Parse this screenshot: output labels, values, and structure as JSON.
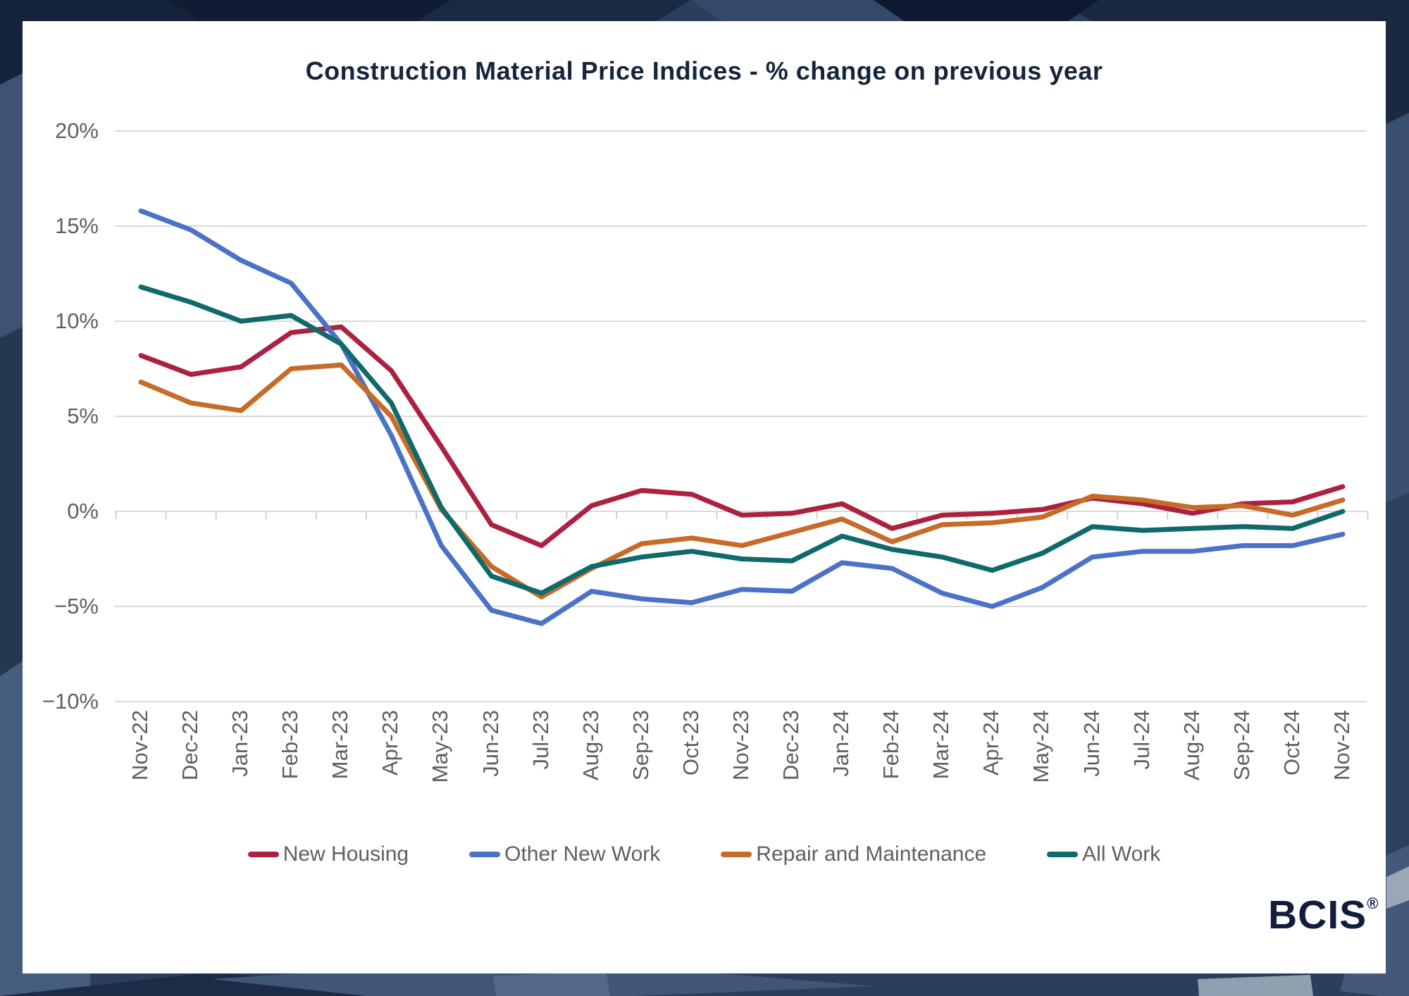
{
  "chart_data": {
    "type": "line",
    "title": "Construction Material Price Indices - % change on previous year",
    "categories": [
      "Nov-22",
      "Dec-22",
      "Jan-23",
      "Feb-23",
      "Mar-23",
      "Apr-23",
      "May-23",
      "Jun-23",
      "Jul-23",
      "Aug-23",
      "Sep-23",
      "Oct-23",
      "Nov-23",
      "Dec-23",
      "Jan-24",
      "Feb-24",
      "Mar-24",
      "Apr-24",
      "May-24",
      "Jun-24",
      "Jul-24",
      "Aug-24",
      "Sep-24",
      "Oct-24",
      "Nov-24"
    ],
    "series": [
      {
        "name": "New Housing",
        "color": "#ad2140",
        "values": [
          8.2,
          7.2,
          7.6,
          9.4,
          9.7,
          7.4,
          3.4,
          -0.7,
          -1.8,
          0.3,
          1.1,
          0.9,
          -0.2,
          -0.1,
          0.4,
          -0.9,
          -0.2,
          -0.1,
          0.1,
          0.7,
          0.4,
          -0.1,
          0.4,
          0.5,
          1.3
        ]
      },
      {
        "name": "Other New Work",
        "color": "#4a72c8",
        "values": [
          15.8,
          14.8,
          13.2,
          12.0,
          8.8,
          4.0,
          -1.8,
          -5.2,
          -5.9,
          -4.2,
          -4.6,
          -4.8,
          -4.1,
          -4.2,
          -2.7,
          -3.0,
          -4.3,
          -5.0,
          -4.0,
          -2.4,
          -2.1,
          -2.1,
          -1.8,
          -1.8,
          -1.2
        ]
      },
      {
        "name": "Repair and Maintenance",
        "color": "#c66b28",
        "values": [
          6.8,
          5.7,
          5.3,
          7.5,
          7.7,
          5.0,
          0.1,
          -2.9,
          -4.5,
          -3.0,
          -1.7,
          -1.4,
          -1.8,
          -1.1,
          -0.4,
          -1.6,
          -0.7,
          -0.6,
          -0.3,
          0.8,
          0.6,
          0.2,
          0.3,
          -0.2,
          0.6
        ]
      },
      {
        "name": "All Work",
        "color": "#10696a",
        "values": [
          11.8,
          11.0,
          10.0,
          10.3,
          8.8,
          5.7,
          0.2,
          -3.4,
          -4.3,
          -2.9,
          -2.4,
          -2.1,
          -2.5,
          -2.6,
          -1.3,
          -2.0,
          -2.4,
          -3.1,
          -2.2,
          -0.8,
          -1.0,
          -0.9,
          -0.8,
          -0.9,
          0.0
        ]
      }
    ],
    "ylim": [
      -10,
      20
    ],
    "ytick_values": [
      20,
      15,
      10,
      5,
      0,
      -5,
      -10
    ],
    "ytick_labels": [
      "20%",
      "15%",
      "10%",
      "5%",
      "0%",
      "−5%",
      "−10%"
    ],
    "grid": true,
    "legend_position": "bottom"
  },
  "logo": {
    "text": "BCIS",
    "registered": "®"
  },
  "colors": {
    "title_text": "#16243d",
    "axis_text": "#5f5f5f",
    "gridline": "#d9d9d9",
    "tick": "#cfcfcf",
    "card_background": "#ffffff",
    "frame_background": "#2b3f5a"
  }
}
